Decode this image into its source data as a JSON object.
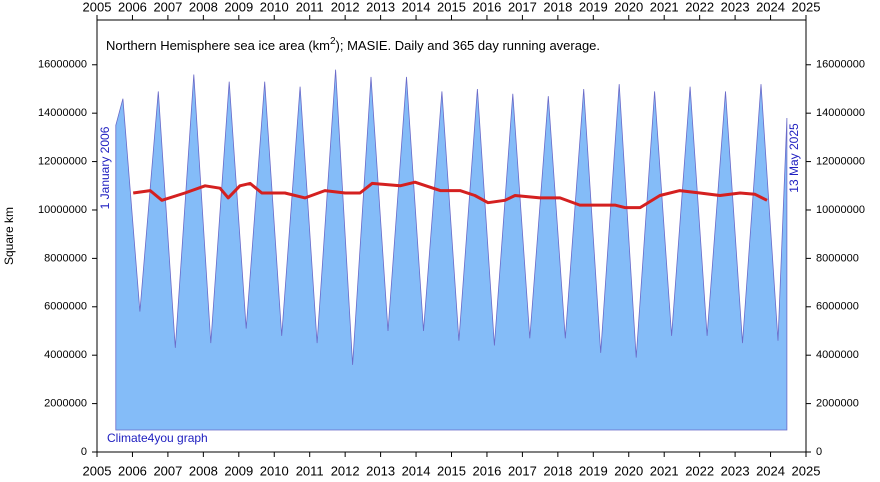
{
  "chart_data": {
    "type": "area",
    "title": "Northern Hemisphere sea ice area (km",
    "title_superscript": "2",
    "title_end": "); MASIE. Daily and 365 day running average.",
    "ylabel": "Square km",
    "annotations": {
      "start": "1 January 2006",
      "end": "13 May 2025",
      "credit": "Climate4you graph"
    },
    "xlim": [
      2005.47,
      2025.47
    ],
    "xticks": [
      {
        "value": 2005.47,
        "label": "2005"
      },
      {
        "value": 2006.47,
        "label": "2006"
      },
      {
        "value": 2007.47,
        "label": "2007"
      },
      {
        "value": 2008.47,
        "label": "2008"
      },
      {
        "value": 2009.47,
        "label": "2009"
      },
      {
        "value": 2010.47,
        "label": "2010"
      },
      {
        "value": 2011.47,
        "label": "2011"
      },
      {
        "value": 2012.47,
        "label": "2012"
      },
      {
        "value": 2013.47,
        "label": "2013"
      },
      {
        "value": 2014.47,
        "label": "2014"
      },
      {
        "value": 2015.47,
        "label": "2015"
      },
      {
        "value": 2016.47,
        "label": "2016"
      },
      {
        "value": 2017.47,
        "label": "2017"
      },
      {
        "value": 2018.47,
        "label": "2018"
      },
      {
        "value": 2019.47,
        "label": "2019"
      },
      {
        "value": 2020.47,
        "label": "2020"
      },
      {
        "value": 2021.47,
        "label": "2021"
      },
      {
        "value": 2022.47,
        "label": "2022"
      },
      {
        "value": 2023.47,
        "label": "2023"
      },
      {
        "value": 2024.47,
        "label": "2024"
      },
      {
        "value": 2025.47,
        "label": "2025"
      }
    ],
    "ylim": [
      0,
      17850000
    ],
    "yticks": [
      0,
      2000000,
      4000000,
      6000000,
      8000000,
      10000000,
      12000000,
      14000000,
      16000000
    ],
    "daily": {
      "color": "#84bcf8",
      "edge": "#6a6ac8",
      "x": [
        2006,
        2006.2,
        2006.68,
        2007.2,
        2007.68,
        2008.2,
        2008.68,
        2009.2,
        2009.68,
        2010.2,
        2010.68,
        2011.2,
        2011.68,
        2012.2,
        2012.68,
        2013.2,
        2013.68,
        2014.2,
        2014.68,
        2015.2,
        2015.68,
        2016.2,
        2016.68,
        2017.2,
        2017.68,
        2018.2,
        2018.68,
        2019.2,
        2019.68,
        2020.2,
        2020.68,
        2021.2,
        2021.68,
        2022.2,
        2022.68,
        2023.2,
        2023.68,
        2024.2,
        2024.68,
        2024.93
      ],
      "values": [
        13500000,
        14600000,
        5800000,
        14900000,
        4300000,
        15600000,
        4500000,
        15300000,
        5100000,
        15300000,
        4800000,
        15100000,
        4500000,
        15800000,
        3600000,
        15500000,
        5000000,
        15500000,
        5000000,
        14900000,
        4600000,
        15000000,
        4400000,
        14800000,
        4700000,
        14700000,
        4700000,
        15000000,
        4100000,
        15200000,
        3900000,
        14900000,
        4800000,
        15100000,
        4800000,
        14900000,
        4500000,
        15200000,
        4600000,
        13800000
      ]
    },
    "average": {
      "color": "#d42020",
      "x": [
        2006.49,
        2006.97,
        2007.3,
        2007.95,
        2008.52,
        2008.94,
        2009.17,
        2009.5,
        2009.79,
        2010.12,
        2010.77,
        2011.34,
        2011.9,
        2012.47,
        2012.89,
        2013.23,
        2014.02,
        2014.44,
        2015.15,
        2015.71,
        2016.13,
        2016.5,
        2016.98,
        2017.26,
        2017.97,
        2018.53,
        2019.09,
        2019.66,
        2020.08,
        2020.36,
        2020.79,
        2021.35,
        2021.91,
        2022.48,
        2023.04,
        2023.61,
        2024.03,
        2024.37
      ],
      "values": [
        10700000,
        10800000,
        10400000,
        10700000,
        11000000,
        10900000,
        10500000,
        11000000,
        11100000,
        10700000,
        10700000,
        10500000,
        10800000,
        10700000,
        10700000,
        11100000,
        11000000,
        11150000,
        10800000,
        10800000,
        10600000,
        10300000,
        10400000,
        10600000,
        10500000,
        10500000,
        10200000,
        10200000,
        10200000,
        10100000,
        10100000,
        10600000,
        10800000,
        10700000,
        10600000,
        10700000,
        10650000,
        10400000
      ]
    }
  }
}
